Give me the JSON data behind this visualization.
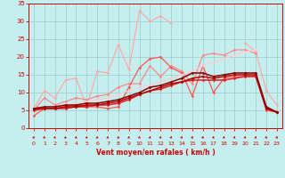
{
  "bg_color": "#c5eeee",
  "grid_color": "#99cccc",
  "text_color": "#cc0000",
  "xlabel": "Vent moyen/en rafales ( km/h )",
  "xlim": [
    -0.5,
    23.5
  ],
  "ylim": [
    0,
    35
  ],
  "yticks": [
    0,
    5,
    10,
    15,
    20,
    25,
    30,
    35
  ],
  "xticks": [
    0,
    1,
    2,
    3,
    4,
    5,
    6,
    7,
    8,
    9,
    10,
    11,
    12,
    13,
    14,
    15,
    16,
    17,
    18,
    19,
    20,
    21,
    22,
    23
  ],
  "lines": [
    {
      "color": "#ffaaaa",
      "lw": 0.9,
      "marker": "D",
      "ms": 1.8,
      "y": [
        5.5,
        10.5,
        8.5,
        13.5,
        14.0,
        6.0,
        16.0,
        15.5,
        23.5,
        16.5,
        33.0,
        30.0,
        31.5,
        29.5,
        null,
        null,
        null,
        null,
        null,
        null,
        24.0,
        21.5,
        10.5,
        6.5
      ]
    },
    {
      "color": "#ff8888",
      "lw": 0.9,
      "marker": "D",
      "ms": 1.8,
      "y": [
        5.0,
        8.5,
        6.5,
        7.5,
        8.5,
        8.0,
        9.0,
        9.5,
        11.5,
        12.5,
        12.5,
        17.5,
        14.5,
        17.5,
        16.0,
        12.5,
        20.5,
        21.0,
        20.5,
        22.0,
        22.0,
        21.0,
        null,
        null
      ]
    },
    {
      "color": "#ff5555",
      "lw": 0.9,
      "marker": "D",
      "ms": 1.8,
      "y": [
        3.5,
        5.5,
        6.0,
        6.0,
        6.5,
        6.0,
        6.0,
        5.5,
        6.0,
        11.5,
        17.0,
        19.5,
        20.0,
        17.0,
        15.5,
        9.0,
        17.5,
        10.0,
        14.0,
        14.5,
        14.5,
        14.5,
        5.0,
        4.5
      ]
    },
    {
      "color": "#ffcccc",
      "lw": 0.9,
      "marker": "D",
      "ms": 1.6,
      "y": [
        5.5,
        5.5,
        6.0,
        6.5,
        7.0,
        7.5,
        8.0,
        8.5,
        9.5,
        10.5,
        11.5,
        12.0,
        13.0,
        14.0,
        15.0,
        16.0,
        17.5,
        18.5,
        19.5,
        20.5,
        21.5,
        22.0,
        null,
        null
      ]
    },
    {
      "color": "#dd2222",
      "lw": 1.1,
      "marker": "D",
      "ms": 1.8,
      "y": [
        5.0,
        5.5,
        5.5,
        5.5,
        6.0,
        6.0,
        6.5,
        6.5,
        7.0,
        8.0,
        9.5,
        10.5,
        11.0,
        12.0,
        13.0,
        13.5,
        13.5,
        13.5,
        13.5,
        14.0,
        14.5,
        14.5,
        5.5,
        4.5
      ]
    },
    {
      "color": "#bb0000",
      "lw": 1.1,
      "marker": "D",
      "ms": 1.8,
      "y": [
        5.5,
        5.5,
        5.5,
        6.0,
        6.0,
        6.5,
        6.5,
        7.0,
        7.5,
        8.5,
        9.5,
        10.5,
        11.5,
        12.5,
        13.0,
        14.0,
        14.5,
        14.0,
        14.5,
        15.0,
        15.0,
        15.0,
        5.5,
        4.5
      ]
    },
    {
      "color": "#880000",
      "lw": 1.1,
      "marker": "D",
      "ms": 1.8,
      "y": [
        5.5,
        6.0,
        6.0,
        6.5,
        6.5,
        7.0,
        7.0,
        7.5,
        8.0,
        9.0,
        10.0,
        11.5,
        12.0,
        13.0,
        14.0,
        15.5,
        15.5,
        14.5,
        15.0,
        15.5,
        15.5,
        15.5,
        6.0,
        4.5
      ]
    }
  ],
  "wind_angles": [
    45,
    50,
    40,
    35,
    30,
    25,
    20,
    25,
    30,
    35,
    50,
    60,
    70,
    80,
    90,
    95,
    100,
    105,
    110,
    115,
    120,
    125,
    130,
    135
  ]
}
